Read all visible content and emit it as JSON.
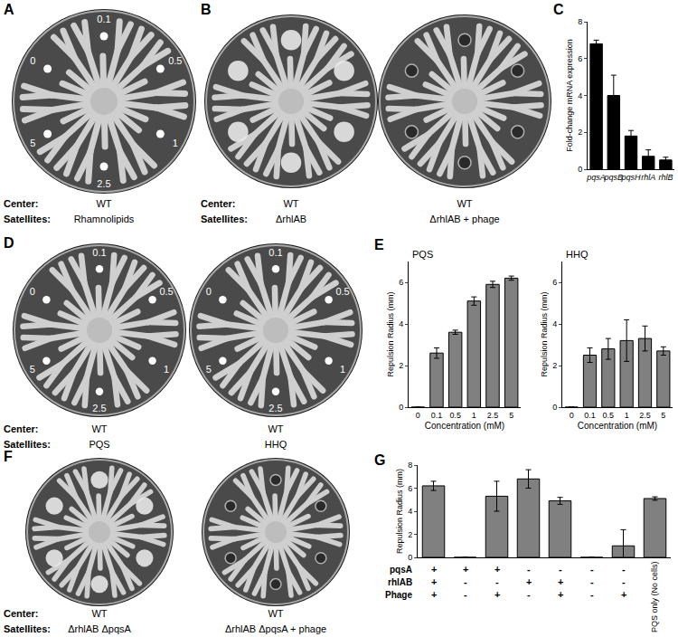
{
  "panels": [
    {
      "label": "A",
      "row_labels": [
        "Center:",
        "Satellites:"
      ],
      "plates": [
        {
          "center": "WT",
          "satellites": "Rhamnolipids",
          "marker": "dot",
          "ring_labels": [
            0.1,
            0.5,
            1,
            2.5,
            5,
            0
          ]
        }
      ]
    },
    {
      "label": "B",
      "row_labels": [
        "Center:",
        "Satellites:"
      ],
      "plates": [
        {
          "center": "WT",
          "satellites": "ΔrhlAB",
          "marker": "colony"
        },
        {
          "center": "WT",
          "satellites": "ΔrhlAB + phage",
          "marker": "plaque"
        }
      ]
    },
    {
      "label": "D",
      "row_labels": [
        "Center:",
        "Satellites:"
      ],
      "plates": [
        {
          "center": "WT",
          "satellites": "PQS",
          "marker": "dot",
          "ring_labels": [
            0.1,
            0.5,
            1,
            2.5,
            5,
            0
          ]
        },
        {
          "center": "WT",
          "satellites": "HHQ",
          "marker": "dot",
          "ring_labels": [
            0.1,
            0.5,
            1,
            2.5,
            5,
            0
          ]
        }
      ]
    },
    {
      "label": "F",
      "row_labels": [
        "Center:",
        "Satellites:"
      ],
      "plates": [
        {
          "center": "WT",
          "satellites": "ΔrhlAB ΔpqsA",
          "marker": "colony"
        },
        {
          "center": "WT",
          "satellites": "ΔrhlAB ΔpqsA + phage",
          "marker": "plaque"
        }
      ]
    }
  ],
  "chart_data": [
    {
      "panel": "C",
      "type": "bar",
      "categories": [
        "pqsA",
        "pqsB",
        "pqsH",
        "rhlA",
        "rhlB"
      ],
      "values": [
        6.8,
        4.0,
        1.8,
        0.7,
        0.5
      ],
      "errors": [
        0.2,
        1.1,
        0.3,
        0.35,
        0.15
      ],
      "color": "#000000",
      "y_label": "Fold-change mRNA expression",
      "ylim": [
        0,
        8
      ],
      "yticks": [
        0,
        2,
        4,
        6,
        8
      ],
      "grid": false
    },
    {
      "panel": "E",
      "type": "bar",
      "title": "PQS",
      "categories": [
        "0",
        "0.1",
        "0.5",
        "1",
        "2.5",
        "5"
      ],
      "values": [
        0,
        2.6,
        3.6,
        5.1,
        5.9,
        6.2
      ],
      "errors": [
        0,
        0.25,
        0.1,
        0.2,
        0.15,
        0.1
      ],
      "color": "#808080",
      "x_label": "Concentration (mM)",
      "y_label": "Repulsion Radius (mm)",
      "ylim": [
        0,
        7
      ],
      "yticks": [
        0,
        2,
        4,
        6
      ],
      "grid": false
    },
    {
      "type": "bar",
      "title": "HHQ",
      "categories": [
        "0",
        "0.1",
        "0.5",
        "1",
        "2.5",
        "5"
      ],
      "values": [
        0,
        2.5,
        2.8,
        3.2,
        3.3,
        2.7
      ],
      "errors": [
        0,
        0.35,
        0.5,
        1.0,
        0.6,
        0.2
      ],
      "color": "#808080",
      "x_label": "Concentration (mM)",
      "y_label": "Repulsion Radius (mm)",
      "ylim": [
        0,
        7
      ],
      "yticks": [
        0,
        2,
        4,
        6
      ],
      "grid": false
    },
    {
      "panel": "G",
      "type": "bar",
      "categories": [
        null,
        null,
        null,
        null,
        null,
        null,
        null,
        "PQS only (No cells)"
      ],
      "values": [
        6.2,
        0,
        5.3,
        6.8,
        4.9,
        0,
        1.0,
        5.1
      ],
      "errors": [
        0.4,
        0,
        1.3,
        0.8,
        0.3,
        0,
        1.4,
        0.15
      ],
      "color": "#808080",
      "y_label": "Repulsion Radius (mm)",
      "ylim": [
        0,
        8
      ],
      "yticks": [
        0,
        2,
        4,
        6,
        8
      ],
      "grid": false
    }
  ],
  "table": {
    "rows": [
      {
        "label": "pqsA",
        "values": [
          "+",
          "+",
          "+",
          "-",
          "-",
          "-",
          "-"
        ]
      },
      {
        "label": "rhlAB",
        "values": [
          "+",
          "-",
          "-",
          "+",
          "+",
          "-",
          "-"
        ]
      },
      {
        "label": "Phage",
        "values": [
          "+",
          "-",
          "+",
          "-",
          "+",
          "-",
          "+"
        ]
      }
    ]
  }
}
